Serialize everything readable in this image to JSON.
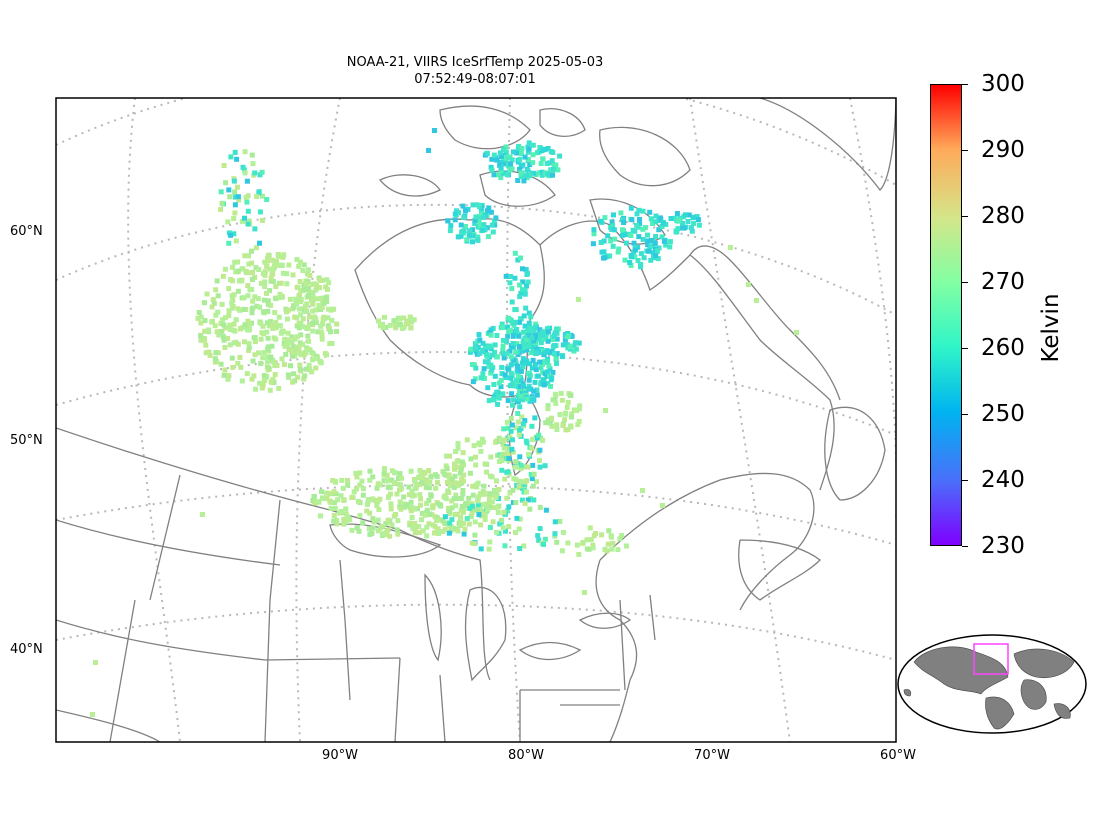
{
  "title": {
    "line1": "NOAA-21, VIIRS IceSrfTemp 2025-05-03",
    "line2": "07:52:49-08:07:01"
  },
  "latitude_labels": [
    "60°N",
    "50°N",
    "40°N"
  ],
  "longitude_labels": [
    "90°W",
    "80°W",
    "70°W",
    "60°W"
  ],
  "colorbar": {
    "unit": "Kelvin",
    "ticks": [
      "300",
      "290",
      "280",
      "270",
      "260",
      "250",
      "240",
      "230"
    ],
    "min": 230,
    "max": 300,
    "colormap": "rainbow"
  },
  "inset": {
    "description": "world-locator-map",
    "highlight_color": "#ff44ff",
    "land_color": "#808080"
  },
  "colors": {
    "coastline": "#7f7f7f",
    "gridline": "#b0b0b0",
    "warm_pixels": "#b8ee94",
    "cold_pixels": "#40e8c8"
  }
}
